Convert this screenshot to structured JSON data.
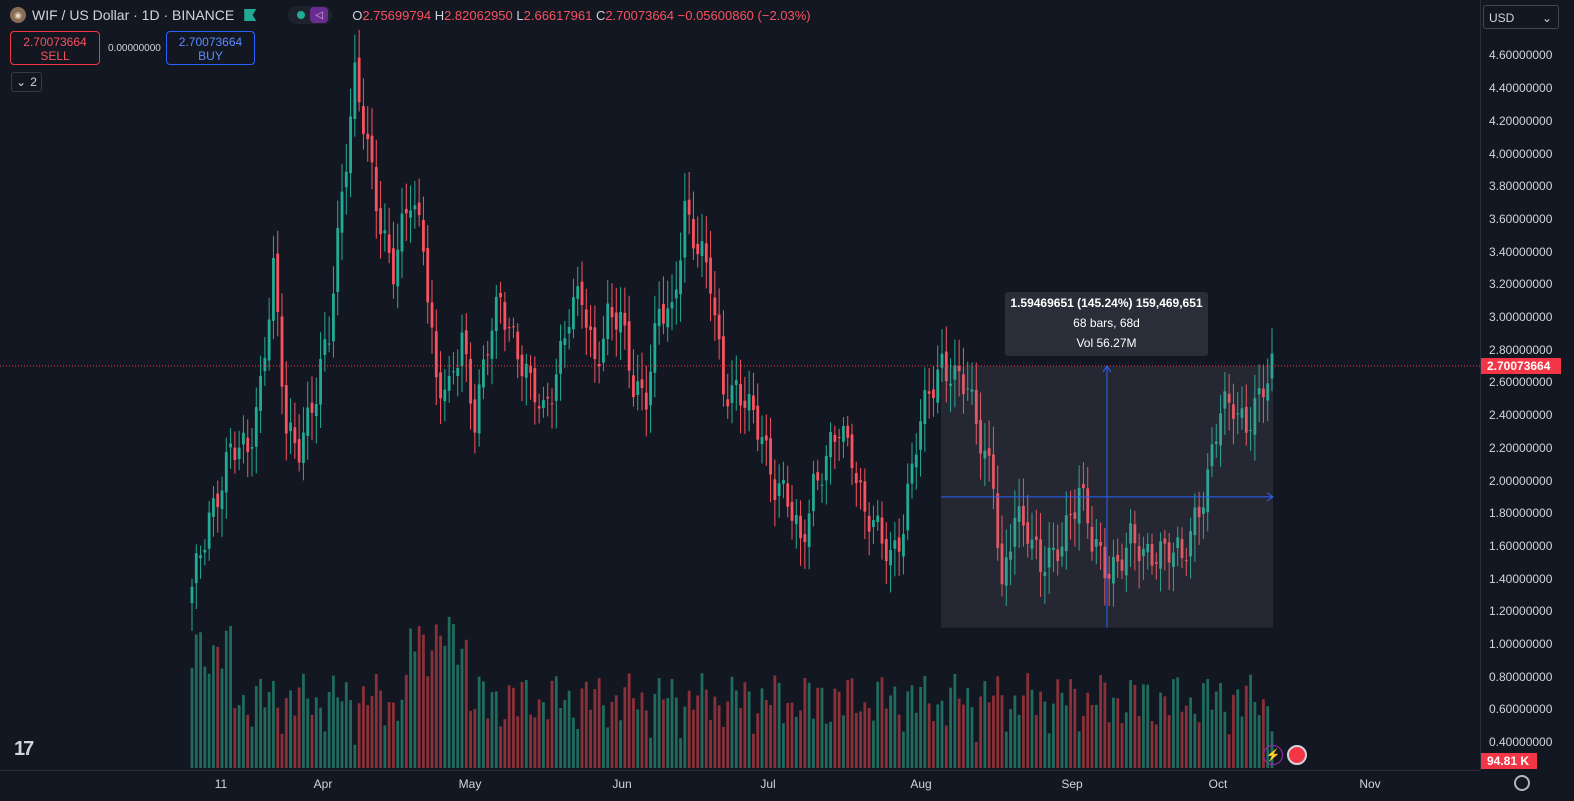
{
  "header": {
    "coin_icon": "dogwifhat-coin-icon",
    "symbol_title": "WIF / US Dollar · 1D · BINANCE",
    "ohlc": {
      "o_label": "O",
      "o": "2.75699794",
      "h_label": "H",
      "h": "2.82062950",
      "l_label": "L",
      "l": "2.66617961",
      "c_label": "C",
      "c": "2.70073664",
      "change": "−0.05600860 (−2.03%)"
    },
    "sell_price": "2.70073664",
    "sell_label": "SELL",
    "spread": "0.00000000",
    "buy_price": "2.70073664",
    "buy_label": "BUY",
    "collapse_count": "2"
  },
  "currency_select": "USD",
  "current_price_label": "2.70073664",
  "volume_label": "94.81 K",
  "measure_tooltip": {
    "line1": "1.59469651 (145.24%) 159,469,651",
    "line2": "68 bars, 68d",
    "line3": "Vol 56.27M"
  },
  "colors": {
    "up": "#22ab94",
    "down": "#f7525f",
    "background": "#131722",
    "accent": "#2962ff"
  },
  "chart_data": {
    "type": "candlestick",
    "symbol": "WIF/USD",
    "interval": "1D",
    "y_ticks": [
      "4.60000000",
      "4.40000000",
      "4.20000000",
      "4.00000000",
      "3.80000000",
      "3.60000000",
      "3.40000000",
      "3.20000000",
      "3.00000000",
      "2.80000000",
      "2.60000000",
      "2.40000000",
      "2.20000000",
      "2.00000000",
      "1.80000000",
      "1.60000000",
      "1.40000000",
      "1.20000000",
      "1.00000000",
      "0.80000000",
      "0.60000000",
      "0.40000000"
    ],
    "y_range": [
      0.2,
      4.82
    ],
    "x_ticks": [
      "11",
      "Apr",
      "May",
      "Jun",
      "Jul",
      "Aug",
      "Sep",
      "Oct",
      "Nov"
    ],
    "current_price": 2.70073664,
    "measure": {
      "from_price": 1.1,
      "to_price": 2.7,
      "change": "1.59469651",
      "percent": "145.24%",
      "bars": 68
    },
    "candles_close_anchor": [
      [
        0,
        1.3
      ],
      [
        4,
        1.8
      ],
      [
        9,
        2.15
      ],
      [
        13,
        2.2
      ],
      [
        16,
        2.6
      ],
      [
        19,
        3.25
      ],
      [
        22,
        2.3
      ],
      [
        25,
        2.25
      ],
      [
        29,
        2.5
      ],
      [
        32,
        2.9
      ],
      [
        35,
        3.8
      ],
      [
        38,
        4.45
      ],
      [
        41,
        4.0
      ],
      [
        44,
        3.6
      ],
      [
        47,
        3.3
      ],
      [
        51,
        3.7
      ],
      [
        54,
        3.5
      ],
      [
        57,
        2.6
      ],
      [
        60,
        2.5
      ],
      [
        63,
        2.9
      ],
      [
        66,
        2.4
      ],
      [
        69,
        2.8
      ],
      [
        72,
        3.1
      ],
      [
        75,
        2.9
      ],
      [
        79,
        2.55
      ],
      [
        82,
        2.4
      ],
      [
        85,
        2.7
      ],
      [
        88,
        3.0
      ],
      [
        91,
        3.1
      ],
      [
        94,
        2.75
      ],
      [
        97,
        3.0
      ],
      [
        100,
        2.95
      ],
      [
        103,
        2.6
      ],
      [
        106,
        2.55
      ],
      [
        109,
        3.0
      ],
      [
        112,
        3.0
      ],
      [
        115,
        3.7
      ],
      [
        118,
        3.4
      ],
      [
        121,
        3.2
      ],
      [
        124,
        2.6
      ],
      [
        127,
        2.55
      ],
      [
        130,
        2.4
      ],
      [
        133,
        2.3
      ],
      [
        136,
        2.0
      ],
      [
        139,
        1.85
      ],
      [
        142,
        1.6
      ],
      [
        145,
        2.0
      ],
      [
        148,
        2.1
      ],
      [
        151,
        2.3
      ],
      [
        154,
        2.2
      ],
      [
        157,
        1.8
      ],
      [
        160,
        1.65
      ],
      [
        163,
        1.55
      ],
      [
        166,
        1.75
      ],
      [
        169,
        2.2
      ],
      [
        172,
        2.55
      ],
      [
        175,
        2.75
      ],
      [
        178,
        2.6
      ],
      [
        181,
        2.55
      ],
      [
        184,
        2.3
      ],
      [
        187,
        2.0
      ],
      [
        189,
        1.25
      ],
      [
        192,
        1.8
      ],
      [
        195,
        1.75
      ],
      [
        198,
        1.45
      ],
      [
        201,
        1.5
      ],
      [
        204,
        1.75
      ],
      [
        207,
        1.95
      ],
      [
        210,
        1.6
      ],
      [
        213,
        1.5
      ],
      [
        216,
        1.5
      ],
      [
        219,
        1.6
      ],
      [
        222,
        1.55
      ],
      [
        225,
        1.6
      ],
      [
        228,
        1.55
      ],
      [
        231,
        1.5
      ],
      [
        234,
        1.8
      ],
      [
        237,
        2.0
      ],
      [
        240,
        2.4
      ],
      [
        243,
        2.5
      ],
      [
        246,
        2.35
      ],
      [
        249,
        2.45
      ],
      [
        252,
        2.7
      ]
    ]
  }
}
